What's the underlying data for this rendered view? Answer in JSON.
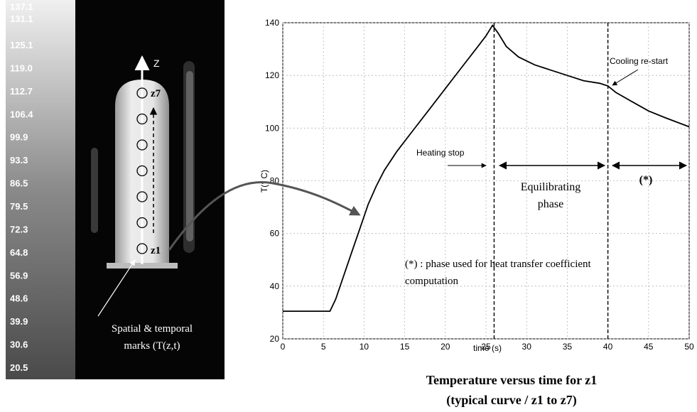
{
  "thermogram": {
    "scale_values": [
      "137.1",
      "131.1",
      "125.1",
      "119.0",
      "112.7",
      "106.4",
      "99.9",
      "93.3",
      "86.5",
      "79.5",
      "72.3",
      "64.8",
      "56.9",
      "48.6",
      "39.9",
      "30.6",
      "20.5"
    ],
    "axis_label": "Z",
    "top_mark": "z7",
    "bottom_mark": "z1",
    "marks_caption_line1": "Spatial & temporal",
    "marks_caption_line2": "marks (T(z,t)"
  },
  "chart_data": {
    "type": "line",
    "title": "Temperature versus time for z1",
    "subtitle": "(typical curve / z1 to z7)",
    "xlabel": "time (s)",
    "ylabel": "T(° C)",
    "xlim": [
      0,
      50
    ],
    "ylim": [
      20,
      140
    ],
    "xticks": [
      0,
      5,
      10,
      15,
      20,
      25,
      30,
      35,
      40,
      45,
      50
    ],
    "yticks": [
      20,
      40,
      60,
      80,
      100,
      120,
      140
    ],
    "grid": true,
    "series": [
      {
        "x": [
          0,
          2,
          4,
          5.8,
          6.5,
          7.5,
          8.5,
          9.5,
          10.5,
          11.5,
          12.5,
          14,
          16,
          18,
          20,
          22,
          24,
          25,
          25.8,
          26.5,
          27.5,
          29,
          31,
          33,
          35,
          37,
          39,
          40,
          41,
          43,
          45,
          47,
          50
        ],
        "y": [
          30.5,
          30.5,
          30.5,
          30.5,
          35,
          44,
          53,
          62,
          71,
          78,
          84,
          91,
          99,
          107,
          115,
          123,
          131,
          135,
          139,
          136,
          131,
          127,
          124,
          122,
          120,
          118,
          117,
          116,
          113.5,
          110,
          106.5,
          104,
          100.5
        ]
      }
    ],
    "vlines": [
      26,
      40
    ],
    "annotations": {
      "heating_stop": "Heating stop",
      "cooling_restart": "Cooling re-start",
      "equilibrating_line1": "Equilibrating",
      "equilibrating_line2": "phase",
      "star_label": "(*)",
      "note_line1": "(*) : phase used for heat transfer coefficient",
      "note_line2": "computation"
    }
  }
}
